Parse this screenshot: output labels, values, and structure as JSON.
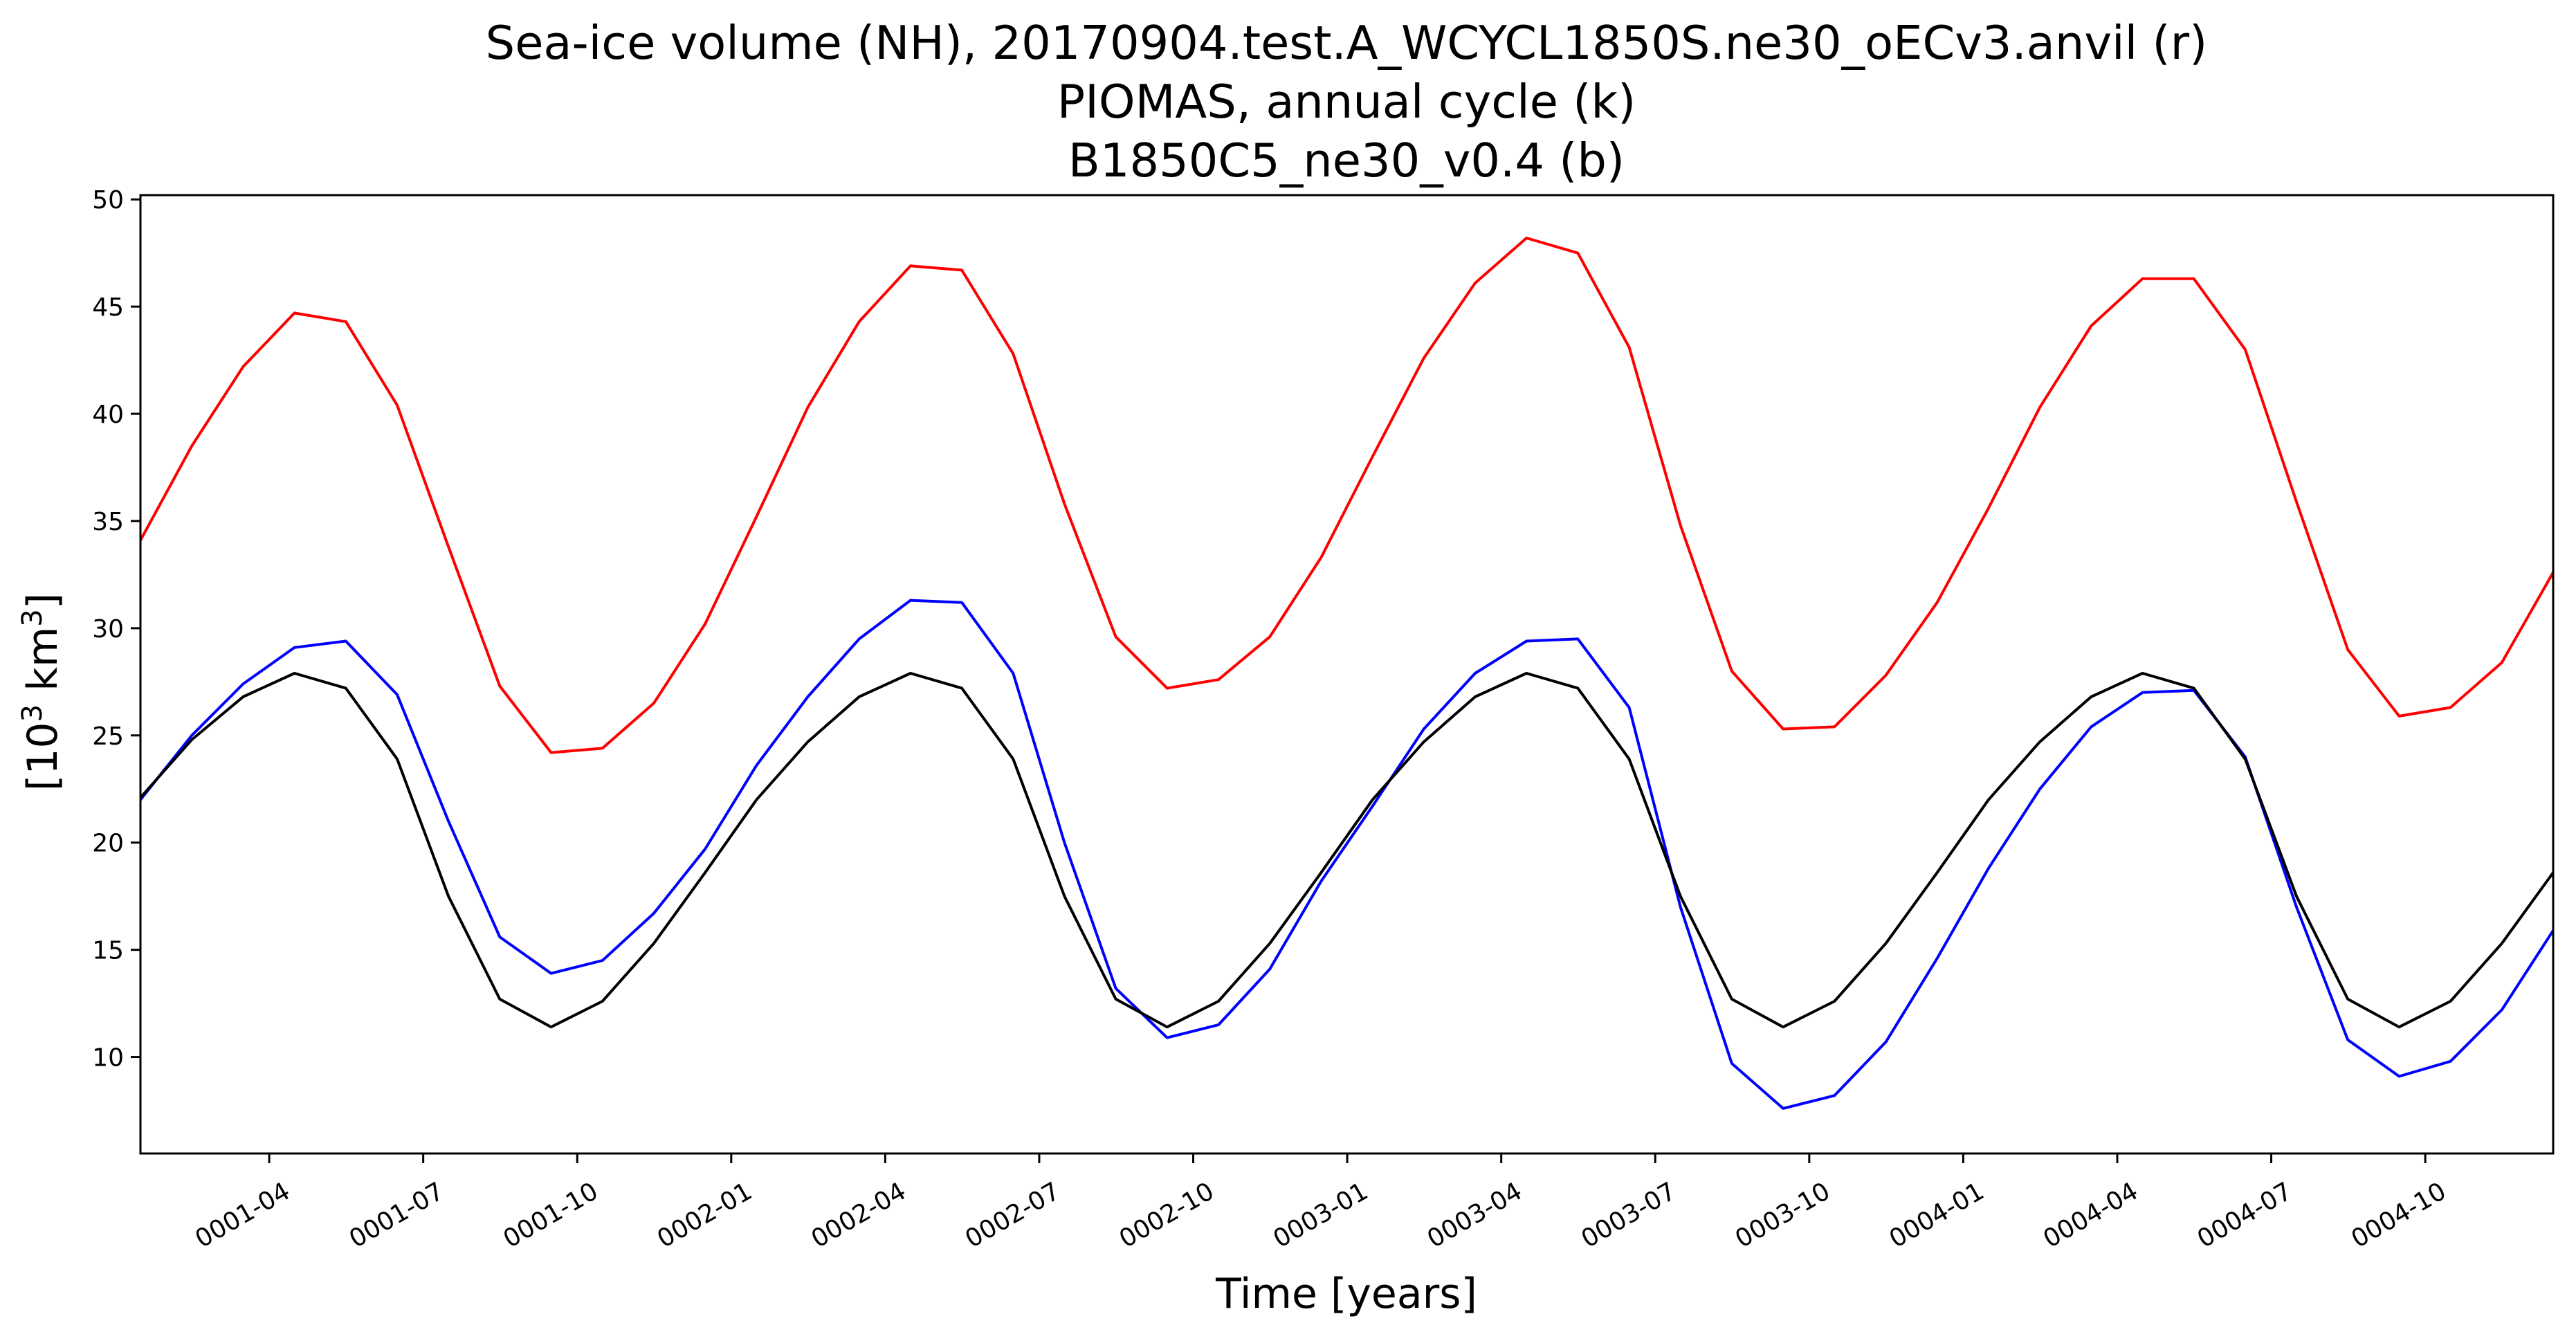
{
  "chart_data": {
    "type": "line",
    "title_lines": [
      "Sea-ice volume (NH), 20170904.test.A_WCYCL1850S.ne30_oECv3.anvil (r)",
      "PIOMAS, annual cycle (k)",
      "B1850C5_ne30_v0.4 (b)"
    ],
    "xlabel": "Time [years]",
    "ylabel_base": "[10",
    "ylabel_sup1": "3",
    "ylabel_mid": " km",
    "ylabel_sup2": "3",
    "ylabel_end": "]",
    "ylim": [
      5.5,
      50.2
    ],
    "xlim": [
      "0001-01-16",
      "0004-12-16"
    ],
    "yticks": [
      10,
      15,
      20,
      25,
      30,
      35,
      40,
      45,
      50
    ],
    "xticks": [
      {
        "value": "0001-04",
        "label": "0001-04"
      },
      {
        "value": "0001-07",
        "label": "0001-07"
      },
      {
        "value": "0001-10",
        "label": "0001-10"
      },
      {
        "value": "0002-01",
        "label": "0002-01"
      },
      {
        "value": "0002-04",
        "label": "0002-04"
      },
      {
        "value": "0002-07",
        "label": "0002-07"
      },
      {
        "value": "0002-10",
        "label": "0002-10"
      },
      {
        "value": "0003-01",
        "label": "0003-01"
      },
      {
        "value": "0003-04",
        "label": "0003-04"
      },
      {
        "value": "0003-07",
        "label": "0003-07"
      },
      {
        "value": "0003-10",
        "label": "0003-10"
      },
      {
        "value": "0004-01",
        "label": "0004-01"
      },
      {
        "value": "0004-04",
        "label": "0004-04"
      },
      {
        "value": "0004-07",
        "label": "0004-07"
      },
      {
        "value": "0004-10",
        "label": "0004-10"
      }
    ],
    "grid": false,
    "x": [
      "0001-01",
      "0001-02",
      "0001-03",
      "0001-04",
      "0001-05",
      "0001-06",
      "0001-07",
      "0001-08",
      "0001-09",
      "0001-10",
      "0001-11",
      "0001-12",
      "0002-01",
      "0002-02",
      "0002-03",
      "0002-04",
      "0002-05",
      "0002-06",
      "0002-07",
      "0002-08",
      "0002-09",
      "0002-10",
      "0002-11",
      "0002-12",
      "0003-01",
      "0003-02",
      "0003-03",
      "0003-04",
      "0003-05",
      "0003-06",
      "0003-07",
      "0003-08",
      "0003-09",
      "0003-10",
      "0003-11",
      "0003-12",
      "0004-01",
      "0004-02",
      "0004-03",
      "0004-04",
      "0004-05",
      "0004-06",
      "0004-07",
      "0004-08",
      "0004-09",
      "0004-10",
      "0004-11",
      "0004-12"
    ],
    "series": [
      {
        "color": "#ff0000",
        "values": [
          34.1,
          38.5,
          42.2,
          44.7,
          44.3,
          40.4,
          33.8,
          27.3,
          24.2,
          24.4,
          26.5,
          30.2,
          35.2,
          40.3,
          44.3,
          46.9,
          46.7,
          42.8,
          35.8,
          29.6,
          27.2,
          27.6,
          29.6,
          33.3,
          38.0,
          42.6,
          46.1,
          48.2,
          47.5,
          43.1,
          34.8,
          28.0,
          25.3,
          25.4,
          27.8,
          31.2,
          35.6,
          40.3,
          44.1,
          46.3,
          46.3,
          43.0,
          35.9,
          29.0,
          25.9,
          26.3,
          28.4,
          32.6
        ]
      },
      {
        "color": "#0000ff",
        "values": [
          22.0,
          25.0,
          27.4,
          29.1,
          29.4,
          26.9,
          21.0,
          15.6,
          13.9,
          14.5,
          16.7,
          19.7,
          23.6,
          26.8,
          29.5,
          31.3,
          31.2,
          27.9,
          20.0,
          13.2,
          10.9,
          11.5,
          14.1,
          18.2,
          21.7,
          25.3,
          27.9,
          29.4,
          29.5,
          26.3,
          17.0,
          9.7,
          7.6,
          8.2,
          10.7,
          14.6,
          18.8,
          22.5,
          25.4,
          27.0,
          27.1,
          24.0,
          17.0,
          10.8,
          9.1,
          9.8,
          12.2,
          15.9
        ]
      },
      {
        "color": "#000000",
        "values": [
          22.1,
          24.8,
          26.8,
          27.9,
          27.2,
          23.9,
          17.5,
          12.7,
          11.4,
          12.6,
          15.3,
          18.6,
          22.0,
          24.7,
          26.8,
          27.9,
          27.2,
          23.9,
          17.5,
          12.7,
          11.4,
          12.6,
          15.3,
          18.6,
          22.0,
          24.7,
          26.8,
          27.9,
          27.2,
          23.9,
          17.5,
          12.7,
          11.4,
          12.6,
          15.3,
          18.6,
          22.0,
          24.7,
          26.8,
          27.9,
          27.2,
          23.9,
          17.5,
          12.7,
          11.4,
          12.6,
          15.3,
          18.6
        ]
      }
    ]
  }
}
